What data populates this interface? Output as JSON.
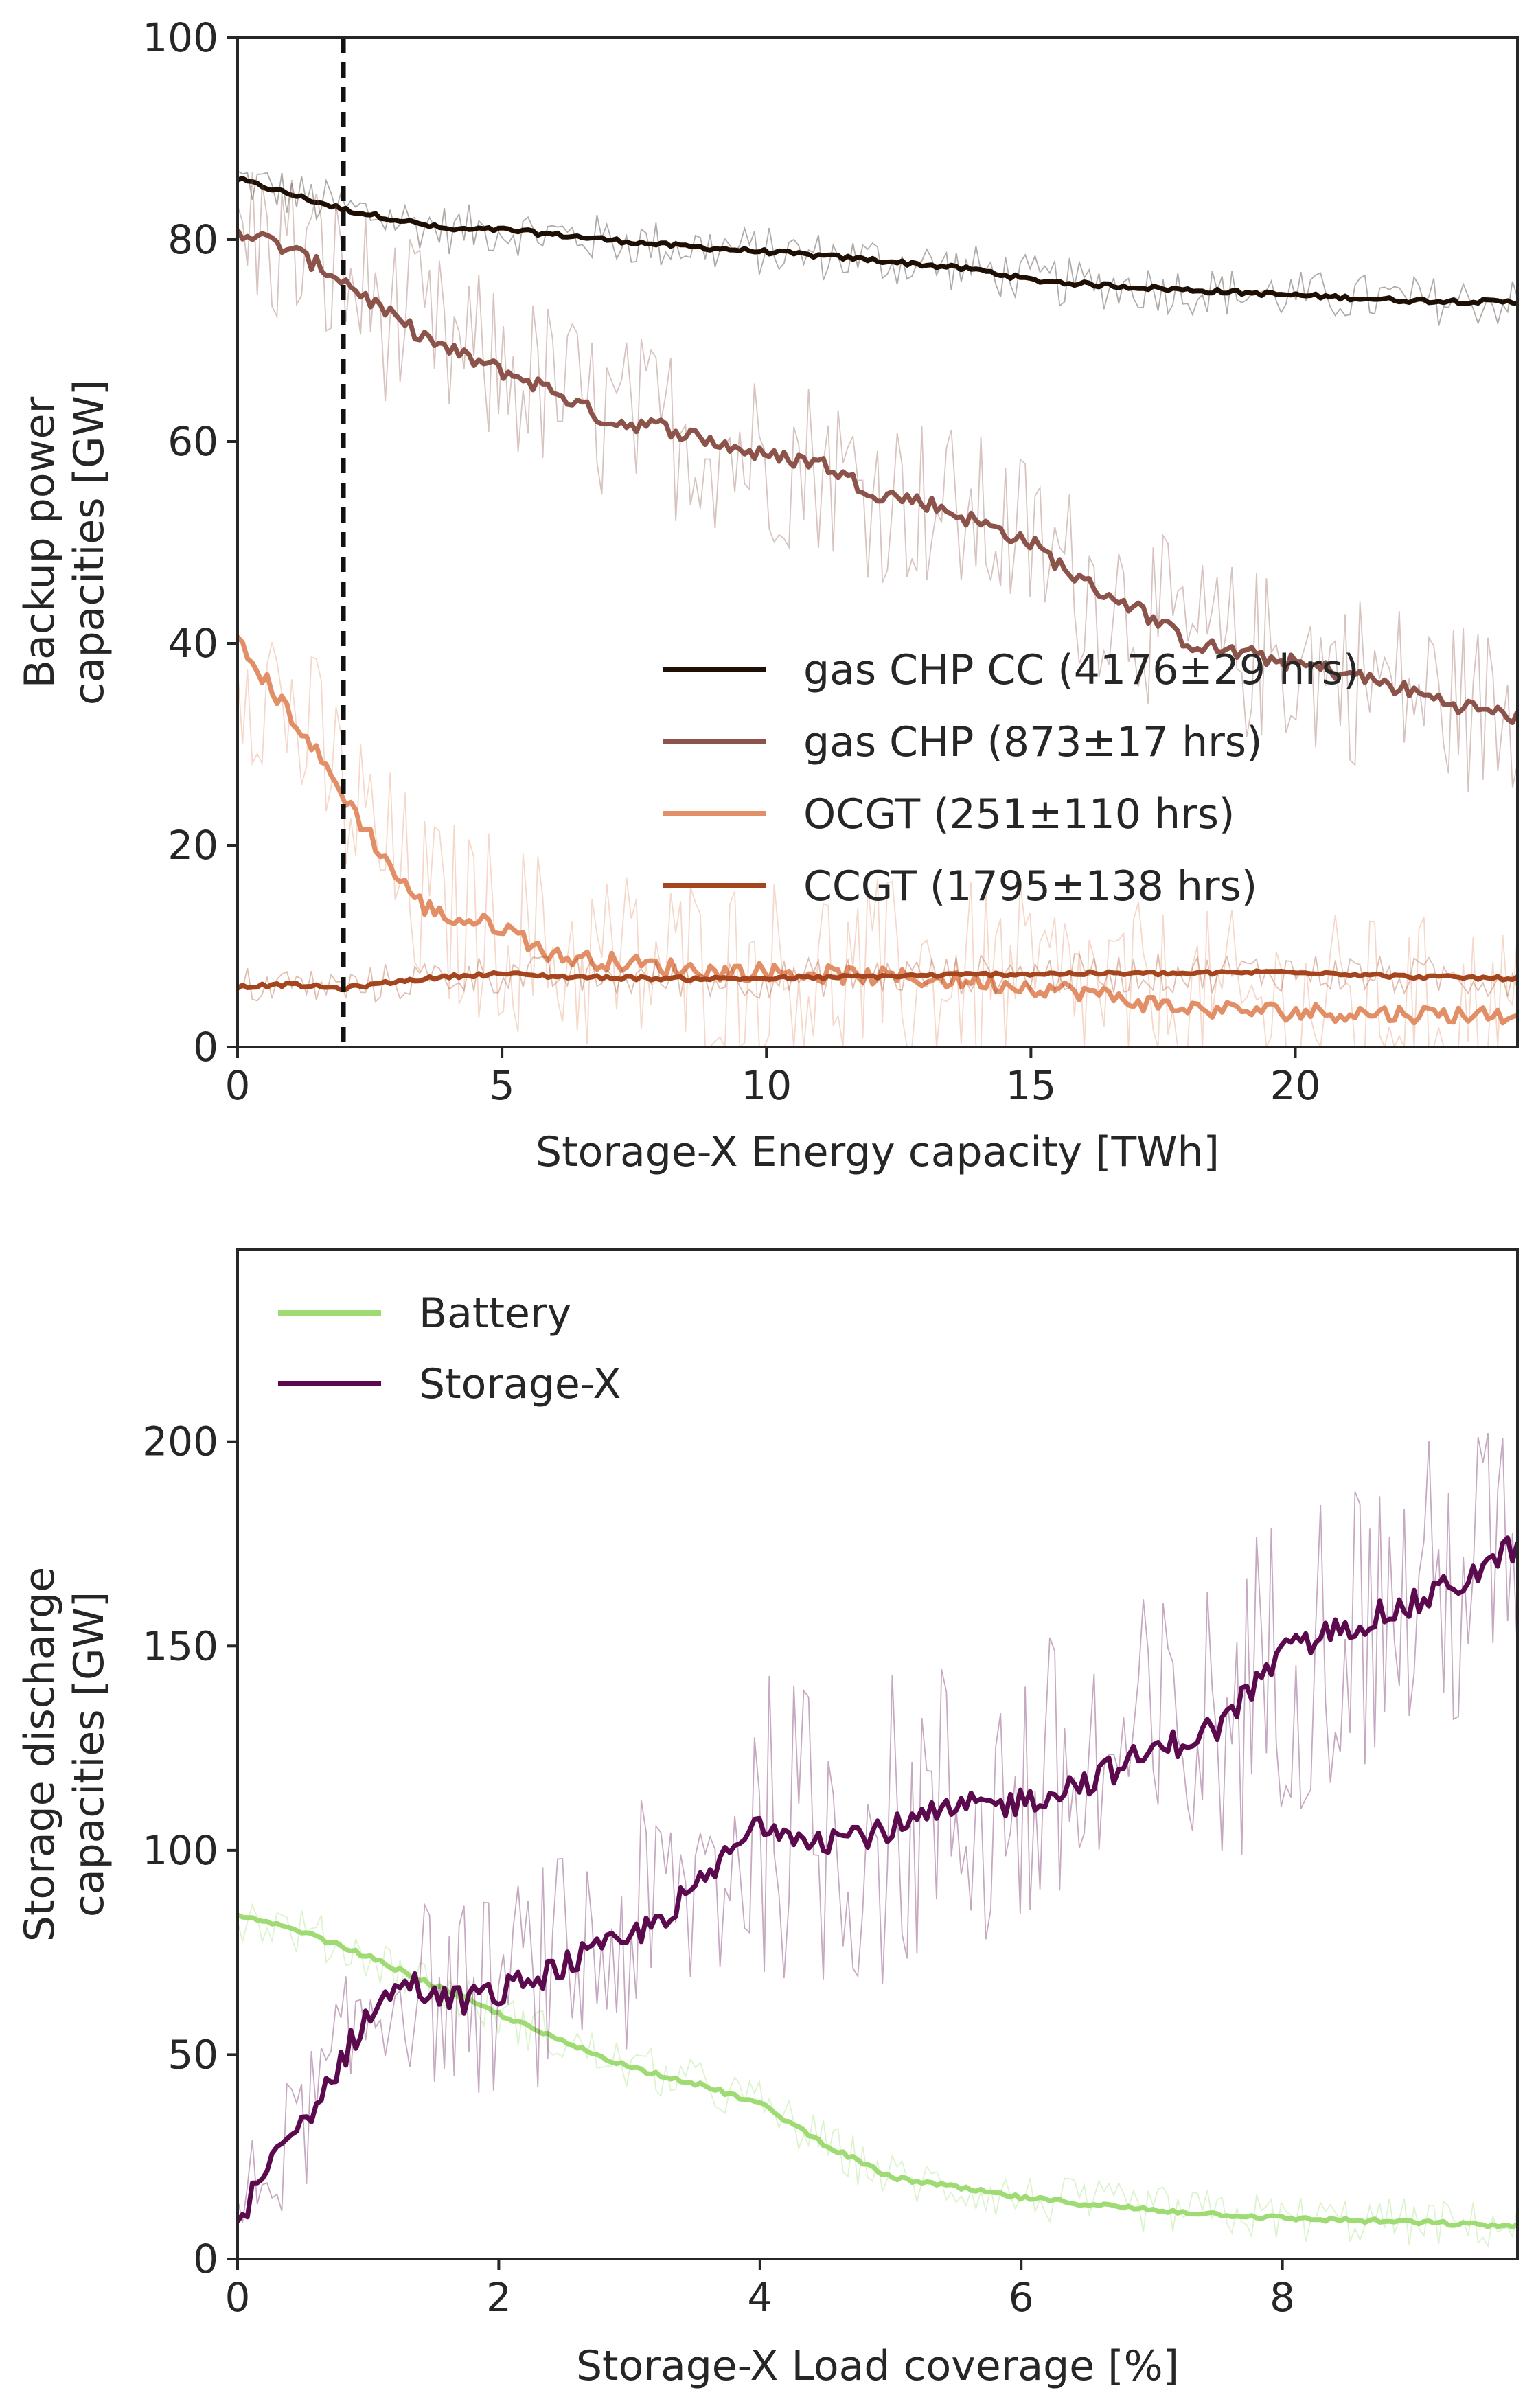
{
  "chart_data": [
    {
      "type": "line",
      "xlabel": "Storage-X Energy capacity [TWh]",
      "ylabel": [
        "Backup power",
        "capacities [GW]"
      ],
      "xlim": [
        0,
        24.2
      ],
      "ylim": [
        0,
        100
      ],
      "xticks": [
        0,
        5,
        10,
        15,
        20
      ],
      "yticks": [
        0,
        20,
        40,
        60,
        80,
        100
      ],
      "grid": false,
      "legend_position": "center-right",
      "vline": {
        "x": 2,
        "style": "dashed",
        "color": "#111111"
      },
      "series": [
        {
          "name": "gas CHP CC (4176±29 hrs)",
          "color": "#1e0f05",
          "x": [
            0,
            1,
            2,
            3,
            4,
            5,
            6,
            7,
            8,
            10,
            12,
            14,
            15,
            16,
            18,
            20,
            22,
            24.2
          ],
          "values": [
            86,
            84.5,
            83,
            82,
            81,
            81,
            80.5,
            80,
            79.5,
            78.8,
            78,
            77,
            76,
            75.6,
            75,
            74.5,
            74,
            73.8
          ],
          "noise": 2.5
        },
        {
          "name": "gas CHP (873±17 hrs)",
          "color": "#8b5349",
          "x": [
            0,
            1,
            2,
            3,
            4,
            5,
            6,
            7,
            8,
            9,
            10,
            11,
            12,
            13,
            14,
            15,
            16,
            17,
            18,
            19,
            20,
            21,
            22,
            23,
            24.2
          ],
          "values": [
            81,
            79,
            76,
            72,
            69,
            67,
            65,
            62,
            61.5,
            60,
            58.5,
            58,
            55,
            54,
            52,
            50,
            46,
            43.5,
            40,
            39,
            38,
            37,
            35.5,
            34,
            32.7
          ],
          "noise": 9
        },
        {
          "name": "OCGT (251±110 hrs)",
          "color": "#e28e66",
          "x": [
            0,
            1,
            2,
            3,
            3.5,
            4,
            5,
            6,
            7,
            8,
            9,
            10,
            12,
            14,
            16,
            17,
            18,
            20,
            22,
            24.2
          ],
          "values": [
            40,
            33,
            25,
            17,
            14,
            12.8,
            12,
            9,
            8.5,
            8,
            7.5,
            7.5,
            7,
            6.5,
            5.5,
            4.5,
            3.8,
            3.5,
            3.3,
            3.2
          ],
          "noise": 10
        },
        {
          "name": "CCGT (1795±138 hrs)",
          "color": "#a5451e",
          "x": [
            0,
            1,
            2,
            3,
            4,
            5,
            6,
            8,
            10,
            12,
            14,
            16,
            18,
            20,
            22,
            24.2
          ],
          "values": [
            6,
            6.2,
            5.8,
            6.5,
            7,
            7.3,
            7,
            6.8,
            6.8,
            7,
            7.2,
            7.3,
            7.3,
            7.5,
            7,
            6.8
          ],
          "noise": 2
        }
      ]
    },
    {
      "type": "line",
      "xlabel": "Storage-X Load coverage [%]",
      "ylabel": [
        "Storage discharge",
        "capacities [GW]"
      ],
      "xlim": [
        0,
        9.8
      ],
      "ylim": [
        0,
        247
      ],
      "xticks": [
        0,
        2,
        4,
        6,
        8
      ],
      "yticks": [
        0,
        50,
        100,
        150,
        200
      ],
      "grid": false,
      "legend_position": "top-left",
      "series": [
        {
          "name": "Battery",
          "color": "#9edc73",
          "x": [
            0,
            0.5,
            1,
            1.5,
            2,
            2.5,
            3,
            3.5,
            4,
            4.5,
            5,
            6,
            7,
            8,
            9,
            9.8
          ],
          "values": [
            84,
            80,
            74,
            67,
            60,
            53,
            47,
            43,
            38,
            28,
            20,
            15,
            12,
            10,
            9,
            8
          ],
          "noise": 6
        },
        {
          "name": "Storage-X",
          "color": "#5c0a4e",
          "x": [
            0,
            0.3,
            0.6,
            1,
            1.3,
            1.6,
            2,
            2.5,
            3,
            3.5,
            4,
            4.5,
            5,
            5.5,
            6,
            6.5,
            7,
            7.5,
            8,
            8.5,
            9,
            9.5,
            9.8
          ],
          "values": [
            10,
            25,
            38,
            60,
            68,
            63,
            65,
            72,
            78,
            90,
            107,
            103,
            105,
            110,
            112,
            117,
            124,
            130,
            148,
            155,
            160,
            168,
            175
          ],
          "noise": 40
        }
      ]
    }
  ]
}
